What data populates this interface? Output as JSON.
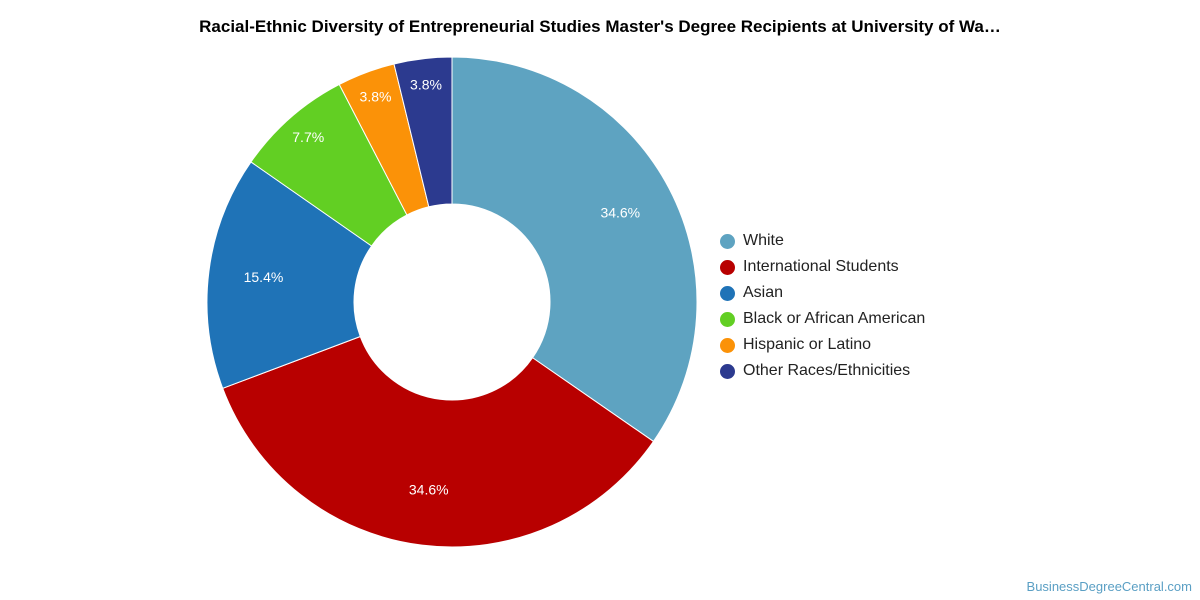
{
  "chart_data": {
    "type": "pie",
    "title": "Racial-Ethnic Diversity of Entrepreneurial Studies Master's Degree Recipients at University of Wa…",
    "donut": true,
    "legend_position": "right",
    "slices": [
      {
        "name": "White",
        "value": 34.6,
        "label": "34.6%",
        "color": "#5ea3c1"
      },
      {
        "name": "International Students",
        "value": 34.6,
        "label": "34.6%",
        "color": "#b80000"
      },
      {
        "name": "Asian",
        "value": 15.4,
        "label": "15.4%",
        "color": "#1f73b7"
      },
      {
        "name": "Black or African American",
        "value": 7.7,
        "label": "7.7%",
        "color": "#62cf23"
      },
      {
        "name": "Hispanic or Latino",
        "value": 3.8,
        "label": "3.8%",
        "color": "#fb9208"
      },
      {
        "name": "Other Races/Ethnicities",
        "value": 3.8,
        "label": "3.8%",
        "color": "#2c3a8f"
      }
    ]
  },
  "watermark": "BusinessDegreeCentral.com"
}
